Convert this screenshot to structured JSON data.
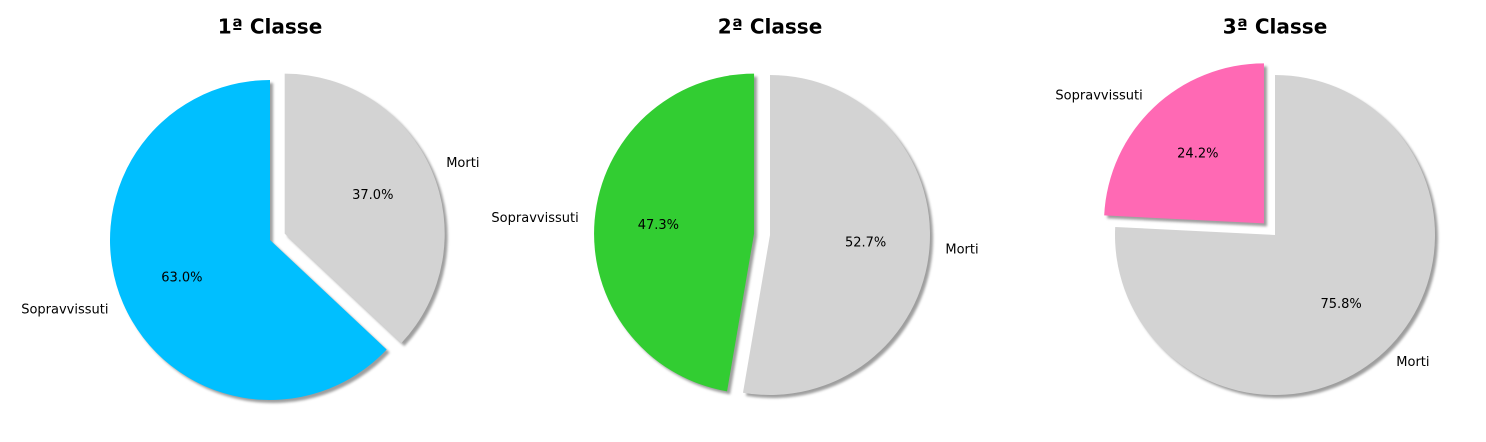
{
  "chart_data": [
    {
      "type": "pie",
      "title": "1ª Classe",
      "labels": [
        "Sopravvissuti",
        "Morti"
      ],
      "values": [
        63.0,
        37.0
      ],
      "percent_labels": [
        "63.0%",
        "37.0%"
      ],
      "colors": [
        "#00BFFF",
        "#D3D3D3"
      ],
      "start_angle": 90,
      "counterclockwise": true,
      "explode": [
        0,
        0.1
      ],
      "shadow": true
    },
    {
      "type": "pie",
      "title": "2ª Classe",
      "labels": [
        "Sopravvissuti",
        "Morti"
      ],
      "values": [
        47.3,
        52.7
      ],
      "percent_labels": [
        "47.3%",
        "52.7%"
      ],
      "colors": [
        "#32CD32",
        "#D3D3D3"
      ],
      "start_angle": 90,
      "counterclockwise": true,
      "explode": [
        0.1,
        0
      ],
      "shadow": true
    },
    {
      "type": "pie",
      "title": "3ª Classe",
      "labels": [
        "Sopravvissuti",
        "Morti"
      ],
      "values": [
        24.2,
        75.8
      ],
      "percent_labels": [
        "24.2%",
        "75.8%"
      ],
      "colors": [
        "#FF69B4",
        "#D3D3D3"
      ],
      "start_angle": 90,
      "counterclockwise": true,
      "explode": [
        0.1,
        0
      ],
      "shadow": true
    }
  ]
}
